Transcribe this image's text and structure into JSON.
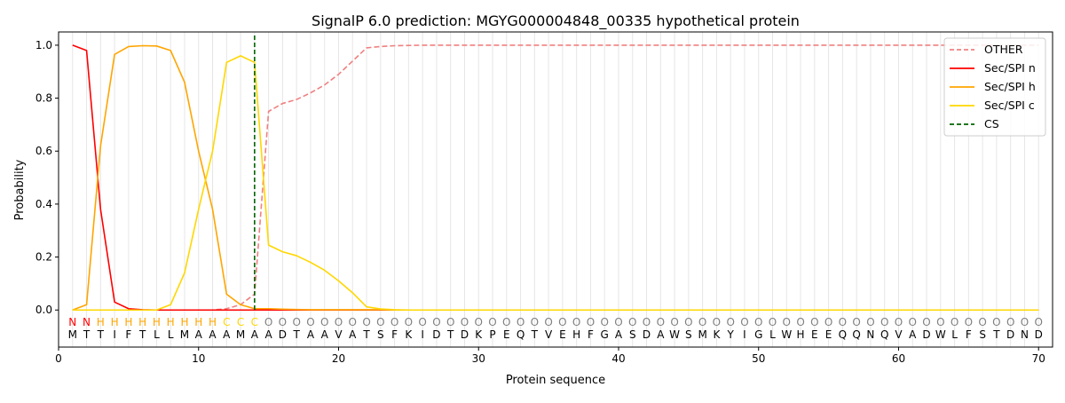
{
  "chart_data": {
    "type": "line",
    "title": "SignalP 6.0 prediction: MGYG000004848_00335 hypothetical protein",
    "xlabel": "Protein sequence",
    "ylabel": "Probability",
    "xlim": [
      0,
      71
    ],
    "ylim": [
      -0.14,
      1.05
    ],
    "xticks": [
      0,
      10,
      20,
      30,
      40,
      50,
      60,
      70
    ],
    "yticks": [
      "0.0",
      "0.2",
      "0.4",
      "0.6",
      "0.8",
      "1.0"
    ],
    "grid": "vertical lines at each residue",
    "legend_position": "top-right",
    "sequence": [
      "M",
      "T",
      "T",
      "I",
      "F",
      "T",
      "L",
      "L",
      "M",
      "A",
      "A",
      "A",
      "M",
      "A",
      "A",
      "D",
      "T",
      "A",
      "A",
      "V",
      "A",
      "T",
      "S",
      "F",
      "K",
      "I",
      "D",
      "T",
      "D",
      "K",
      "P",
      "E",
      "Q",
      "T",
      "V",
      "E",
      "H",
      "F",
      "G",
      "A",
      "S",
      "D",
      "A",
      "W",
      "S",
      "M",
      "K",
      "Y",
      "I",
      "G",
      "L",
      "W",
      "H",
      "E",
      "E",
      "Q",
      "Q",
      "N",
      "Q",
      "V",
      "A",
      "D",
      "W",
      "L",
      "F",
      "S",
      "T",
      "D",
      "N",
      "D"
    ],
    "predicted_labels": [
      "N",
      "N",
      "H",
      "H",
      "H",
      "H",
      "H",
      "H",
      "H",
      "H",
      "H",
      "C",
      "C",
      "C",
      "O",
      "O",
      "O",
      "O",
      "O",
      "O",
      "O",
      "O",
      "O",
      "O",
      "O",
      "O",
      "O",
      "O",
      "O",
      "O",
      "O",
      "O",
      "O",
      "O",
      "O",
      "O",
      "O",
      "O",
      "O",
      "O",
      "O",
      "O",
      "O",
      "O",
      "O",
      "O",
      "O",
      "O",
      "O",
      "O",
      "O",
      "O",
      "O",
      "O",
      "O",
      "O",
      "O",
      "O",
      "O",
      "O",
      "O",
      "O",
      "O",
      "O",
      "O",
      "O",
      "O",
      "O",
      "O",
      "O"
    ],
    "label_colors": {
      "N": "#ff0000",
      "H": "#ffa500",
      "C": "#ffd700",
      "O": "#808080"
    },
    "cleavage_site": 14,
    "series": [
      {
        "name": "OTHER",
        "color": "#f08080",
        "dash": true,
        "values": [
          0,
          0,
          0,
          0,
          0,
          0,
          0,
          0,
          0,
          0,
          0,
          0.005,
          0.02,
          0.06,
          0.75,
          0.78,
          0.795,
          0.82,
          0.85,
          0.89,
          0.94,
          0.99,
          0.995,
          0.998,
          0.999,
          1,
          1,
          1,
          1,
          1,
          1,
          1,
          1,
          1,
          1,
          1,
          1,
          1,
          1,
          1,
          1,
          1,
          1,
          1,
          1,
          1,
          1,
          1,
          1,
          1,
          1,
          1,
          1,
          1,
          1,
          1,
          1,
          1,
          1,
          1,
          1,
          1,
          1,
          1,
          1,
          1,
          1,
          1,
          1,
          1
        ]
      },
      {
        "name": "Sec/SPI n",
        "color": "#ff0000",
        "dash": false,
        "values": [
          1.0,
          0.98,
          0.38,
          0.03,
          0.005,
          0.001,
          0,
          0,
          0,
          0,
          0,
          0,
          0,
          0,
          0,
          0,
          0,
          0,
          0,
          0,
          0,
          0,
          0,
          0,
          0,
          0,
          0,
          0,
          0,
          0,
          0,
          0,
          0,
          0,
          0,
          0,
          0,
          0,
          0,
          0,
          0,
          0,
          0,
          0,
          0,
          0,
          0,
          0,
          0,
          0,
          0,
          0,
          0,
          0,
          0,
          0,
          0,
          0,
          0,
          0,
          0,
          0,
          0,
          0,
          0,
          0,
          0,
          0,
          0,
          0
        ]
      },
      {
        "name": "Sec/SPI h",
        "color": "#ffa500",
        "dash": false,
        "values": [
          0,
          0.02,
          0.62,
          0.965,
          0.995,
          0.998,
          0.997,
          0.98,
          0.86,
          0.6,
          0.38,
          0.06,
          0.02,
          0.005,
          0.005,
          0.003,
          0.002,
          0.001,
          0.001,
          0.001,
          0.001,
          0.001,
          0.001,
          0,
          0,
          0,
          0,
          0,
          0,
          0,
          0,
          0,
          0,
          0,
          0,
          0,
          0,
          0,
          0,
          0,
          0,
          0,
          0,
          0,
          0,
          0,
          0,
          0,
          0,
          0,
          0,
          0,
          0,
          0,
          0,
          0,
          0,
          0,
          0,
          0,
          0,
          0,
          0,
          0,
          0,
          0,
          0,
          0,
          0,
          0
        ]
      },
      {
        "name": "Sec/SPI c",
        "color": "#ffd700",
        "dash": false,
        "values": [
          0,
          0,
          0,
          0,
          0,
          0,
          0,
          0.02,
          0.14,
          0.38,
          0.6,
          0.935,
          0.96,
          0.935,
          0.245,
          0.22,
          0.205,
          0.18,
          0.15,
          0.11,
          0.065,
          0.012,
          0.004,
          0.001,
          0,
          0,
          0,
          0,
          0,
          0,
          0,
          0,
          0,
          0,
          0,
          0,
          0,
          0,
          0,
          0,
          0,
          0,
          0,
          0,
          0,
          0,
          0,
          0,
          0,
          0,
          0,
          0,
          0,
          0,
          0,
          0,
          0,
          0,
          0,
          0,
          0,
          0,
          0,
          0,
          0,
          0,
          0,
          0,
          0,
          0
        ]
      }
    ],
    "legend": [
      {
        "label": "OTHER",
        "color": "#f08080",
        "dash": true
      },
      {
        "label": "Sec/SPI n",
        "color": "#ff0000",
        "dash": false
      },
      {
        "label": "Sec/SPI h",
        "color": "#ffa500",
        "dash": false
      },
      {
        "label": "Sec/SPI c",
        "color": "#ffd700",
        "dash": false
      },
      {
        "label": "CS",
        "color": "#006400",
        "dash": true
      }
    ]
  }
}
